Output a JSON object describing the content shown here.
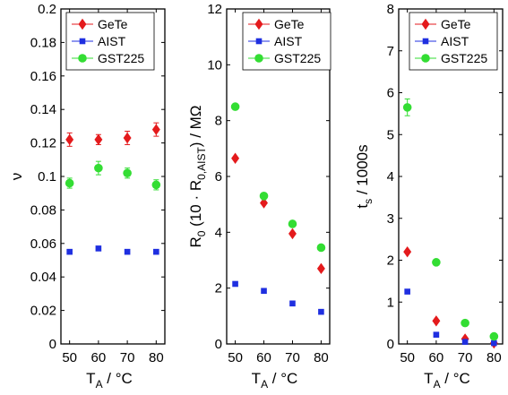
{
  "chart_data": [
    {
      "type": "scatter",
      "xlabel_main": "T",
      "xlabel_sub": "A",
      "xlabel_rest": " / °C",
      "ylabel_parts": [
        {
          "t": "ν",
          "sub": false
        }
      ],
      "xlim": [
        47,
        83
      ],
      "ylim": [
        0,
        0.2
      ],
      "xticks": [
        50,
        60,
        70,
        80
      ],
      "xtick_labels": [
        "50",
        "60",
        "70",
        "80"
      ],
      "yticks": [
        0,
        0.02,
        0.04,
        0.06,
        0.08,
        0.1,
        0.12,
        0.14,
        0.16,
        0.18,
        0.2
      ],
      "ytick_labels": [
        "0",
        "0.02",
        "0.04",
        "0.06",
        "0.08",
        "0.1",
        "0.12",
        "0.14",
        "0.16",
        "0.18",
        "0.2"
      ],
      "legend": "top-left",
      "series": [
        {
          "name": "GeTe",
          "color": "#e41a1c",
          "marker": "diamond",
          "x": [
            50,
            60,
            70,
            80
          ],
          "y": [
            0.122,
            0.122,
            0.123,
            0.128
          ],
          "err": [
            0.004,
            0.003,
            0.004,
            0.004
          ]
        },
        {
          "name": "AIST",
          "color": "#1f2fe0",
          "marker": "square",
          "x": [
            50,
            60,
            70,
            80
          ],
          "y": [
            0.055,
            0.057,
            0.055,
            0.055
          ],
          "err": [
            0,
            0,
            0,
            0
          ]
        },
        {
          "name": "GST225",
          "color": "#33dd33",
          "marker": "circle",
          "x": [
            50,
            60,
            70,
            80
          ],
          "y": [
            0.096,
            0.105,
            0.102,
            0.095
          ],
          "err": [
            0.003,
            0.004,
            0.003,
            0.003
          ]
        }
      ]
    },
    {
      "type": "scatter",
      "xlabel_main": "T",
      "xlabel_sub": "A",
      "xlabel_rest": " / °C",
      "ylabel_parts": [
        {
          "t": "R",
          "sub": false
        },
        {
          "t": "0",
          "sub": true
        },
        {
          "t": " (10 · R",
          "sub": false
        },
        {
          "t": "0,AIST",
          "sub": true
        },
        {
          "t": ") / MΩ",
          "sub": false
        }
      ],
      "xlim": [
        47,
        83
      ],
      "ylim": [
        0,
        12
      ],
      "xticks": [
        50,
        60,
        70,
        80
      ],
      "xtick_labels": [
        "50",
        "60",
        "70",
        "80"
      ],
      "yticks": [
        0,
        2,
        4,
        6,
        8,
        10,
        12
      ],
      "ytick_labels": [
        "0",
        "2",
        "4",
        "6",
        "8",
        "10",
        "12"
      ],
      "legend": "top-right",
      "series": [
        {
          "name": "GeTe",
          "color": "#e41a1c",
          "marker": "diamond",
          "x": [
            50,
            60,
            70,
            80
          ],
          "y": [
            6.65,
            5.05,
            3.95,
            2.7
          ],
          "err": [
            0,
            0,
            0,
            0
          ]
        },
        {
          "name": "AIST",
          "color": "#1f2fe0",
          "marker": "square",
          "x": [
            50,
            60,
            70,
            80
          ],
          "y": [
            2.15,
            1.9,
            1.45,
            1.15
          ],
          "err": [
            0,
            0,
            0,
            0
          ]
        },
        {
          "name": "GST225",
          "color": "#33dd33",
          "marker": "circle",
          "x": [
            50,
            60,
            70,
            80
          ],
          "y": [
            8.5,
            5.3,
            4.3,
            3.45
          ],
          "err": [
            0,
            0,
            0,
            0
          ]
        }
      ]
    },
    {
      "type": "scatter",
      "xlabel_main": "T",
      "xlabel_sub": "A",
      "xlabel_rest": " / °C",
      "ylabel_parts": [
        {
          "t": "t",
          "sub": false
        },
        {
          "t": "s",
          "sub": true
        },
        {
          "t": " / 1000s",
          "sub": false
        }
      ],
      "xlim": [
        47,
        83
      ],
      "ylim": [
        0,
        8
      ],
      "xticks": [
        50,
        60,
        70,
        80
      ],
      "xtick_labels": [
        "50",
        "60",
        "70",
        "80"
      ],
      "yticks": [
        0,
        1,
        2,
        3,
        4,
        5,
        6,
        7,
        8
      ],
      "ytick_labels": [
        "0",
        "1",
        "2",
        "3",
        "4",
        "5",
        "6",
        "7",
        "8"
      ],
      "legend": "top-right",
      "series": [
        {
          "name": "GeTe",
          "color": "#e41a1c",
          "marker": "diamond",
          "x": [
            50,
            60,
            70,
            80
          ],
          "y": [
            2.2,
            0.55,
            0.12,
            0.02
          ],
          "err": [
            0,
            0,
            0,
            0
          ]
        },
        {
          "name": "AIST",
          "color": "#1f2fe0",
          "marker": "square",
          "x": [
            50,
            60,
            70,
            80
          ],
          "y": [
            1.25,
            0.22,
            0.05,
            0.02
          ],
          "err": [
            0,
            0,
            0,
            0
          ]
        },
        {
          "name": "GST225",
          "color": "#33dd33",
          "marker": "circle",
          "x": [
            50,
            60,
            70,
            80
          ],
          "y": [
            5.65,
            1.95,
            0.5,
            0.18
          ],
          "err": [
            0.2,
            0,
            0,
            0
          ]
        }
      ]
    }
  ]
}
